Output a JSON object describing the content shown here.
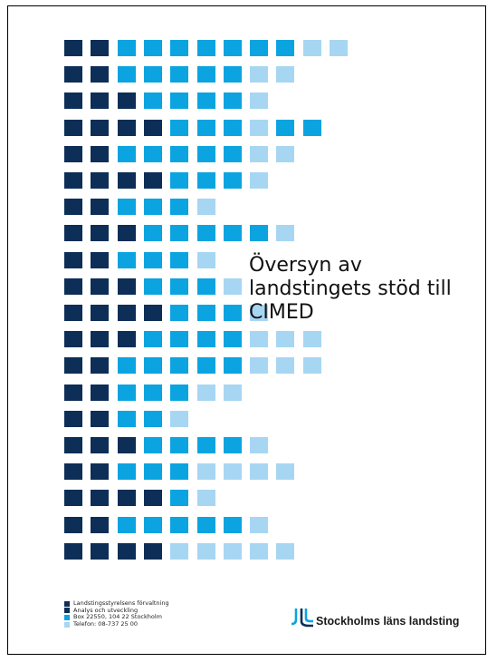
{
  "title": "Översyn av\nlandstingets stöd till\nCIMED",
  "colors": {
    "dark": "#0d2e57",
    "mid": "#0ba4e0",
    "light": "#a7d6f3"
  },
  "pattern": [
    "DDMMMMMMMLL",
    "DDMMMMMLL",
    "DDDMMMML",
    "DDDDMMMLMM",
    "DDMMMMMLL",
    "DDDDMMML",
    "DDMMML",
    "DDDMMMMML",
    "DDMMML",
    "DDDMMML",
    "DDDDMMML",
    "DDDMMMMLLL",
    "DDMMMMMLLL",
    "DDMMMLL",
    "DDMML",
    "DDDMMMML",
    "DDMMMLLLL",
    "DDDDML",
    "DDMMMMML",
    "DDDDLLLLL"
  ],
  "footer": {
    "lines": [
      "Landstingsstyrelsens förvaltning",
      "Analys och utveckling",
      "Box 22550, 104 22 Stockholm",
      "Telefon: 08-737 25 00"
    ],
    "bullet_colors": [
      "#0d2e57",
      "#0d2e57",
      "#0ba4e0",
      "#a7d6f3"
    ]
  },
  "logo": {
    "text": "Stockholms läns landsting",
    "icon": "sll-logo-icon"
  }
}
